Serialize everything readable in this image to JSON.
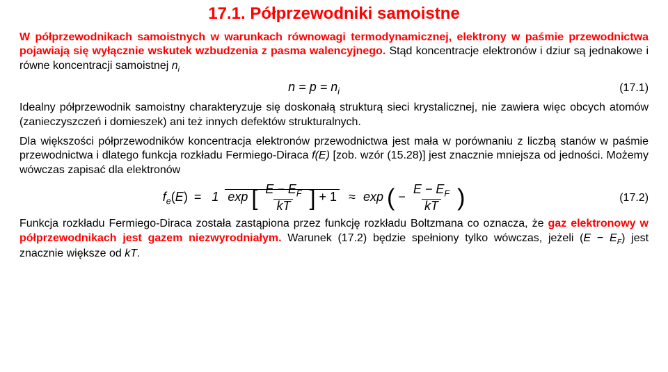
{
  "title": "17.1. Półprzewodniki samoistne",
  "p1_red": "W półprzewodnikach samoistnych w warunkach równowagi termodynamicznej, elektrony w paśmie przewodnictwa pojawiają się wyłącznie wskutek wzbudzenia z pasma walencyjnego.",
  "p1_tail": "Stąd koncentracje elektronów i dziur są jednakowe i równe koncentracji samoistnej ",
  "p1_tail_sym": "n",
  "p1_tail_sub": "i",
  "eq1": {
    "text": "n = p = n",
    "sub": "i",
    "label": "(17.1)"
  },
  "p2": "Idealny półprzewodnik samoistny charakteryzuje się doskonałą strukturą sieci krystalicznej, nie zawiera więc obcych atomów (zanieczyszczeń i domieszek) ani też innych defektów strukturalnych.",
  "p3_a": "Dla większości półprzewodników koncentracja elektronów przewodnictwa jest mała w porównaniu z liczbą stanów w paśmie przewodnictwa i dlatego funkcja rozkładu Fermiego-Diraca ",
  "p3_fe": "f(E)",
  "p3_b": " [zob. wzór (15.28)] jest znacznie mniejsza od jedności. Możemy wówczas zapisać dla elektronów",
  "eq2": {
    "lhs_f": "f",
    "lhs_sub": "e",
    "lhs_arg": "E",
    "num1": "1",
    "exp": "exp",
    "EmEF_E": "E − E",
    "EmEF_sub": "F",
    "kT": "kT",
    "plus1": "+ 1",
    "approx": "≈",
    "minus": "−",
    "label": "(17.2)"
  },
  "p4_a": "Funkcja rozkładu Fermiego-Diraca została zastąpiona przez funkcję rozkładu Boltzmana co oznacza, że ",
  "p4_red": "gaz elektronowy w półprzewodnikach jest gazem niezwyrodniałym.",
  "p4_b": " Warunek (17.2) będzie spełniony tylko wówczas, jeżeli (",
  "p4_EF_1": "E",
  "p4_minus": " − ",
  "p4_EF_2": "E",
  "p4_EF_sub": "F",
  "p4_c": ") jest znacznie większe od ",
  "p4_kT": "kT",
  "p4_d": "."
}
